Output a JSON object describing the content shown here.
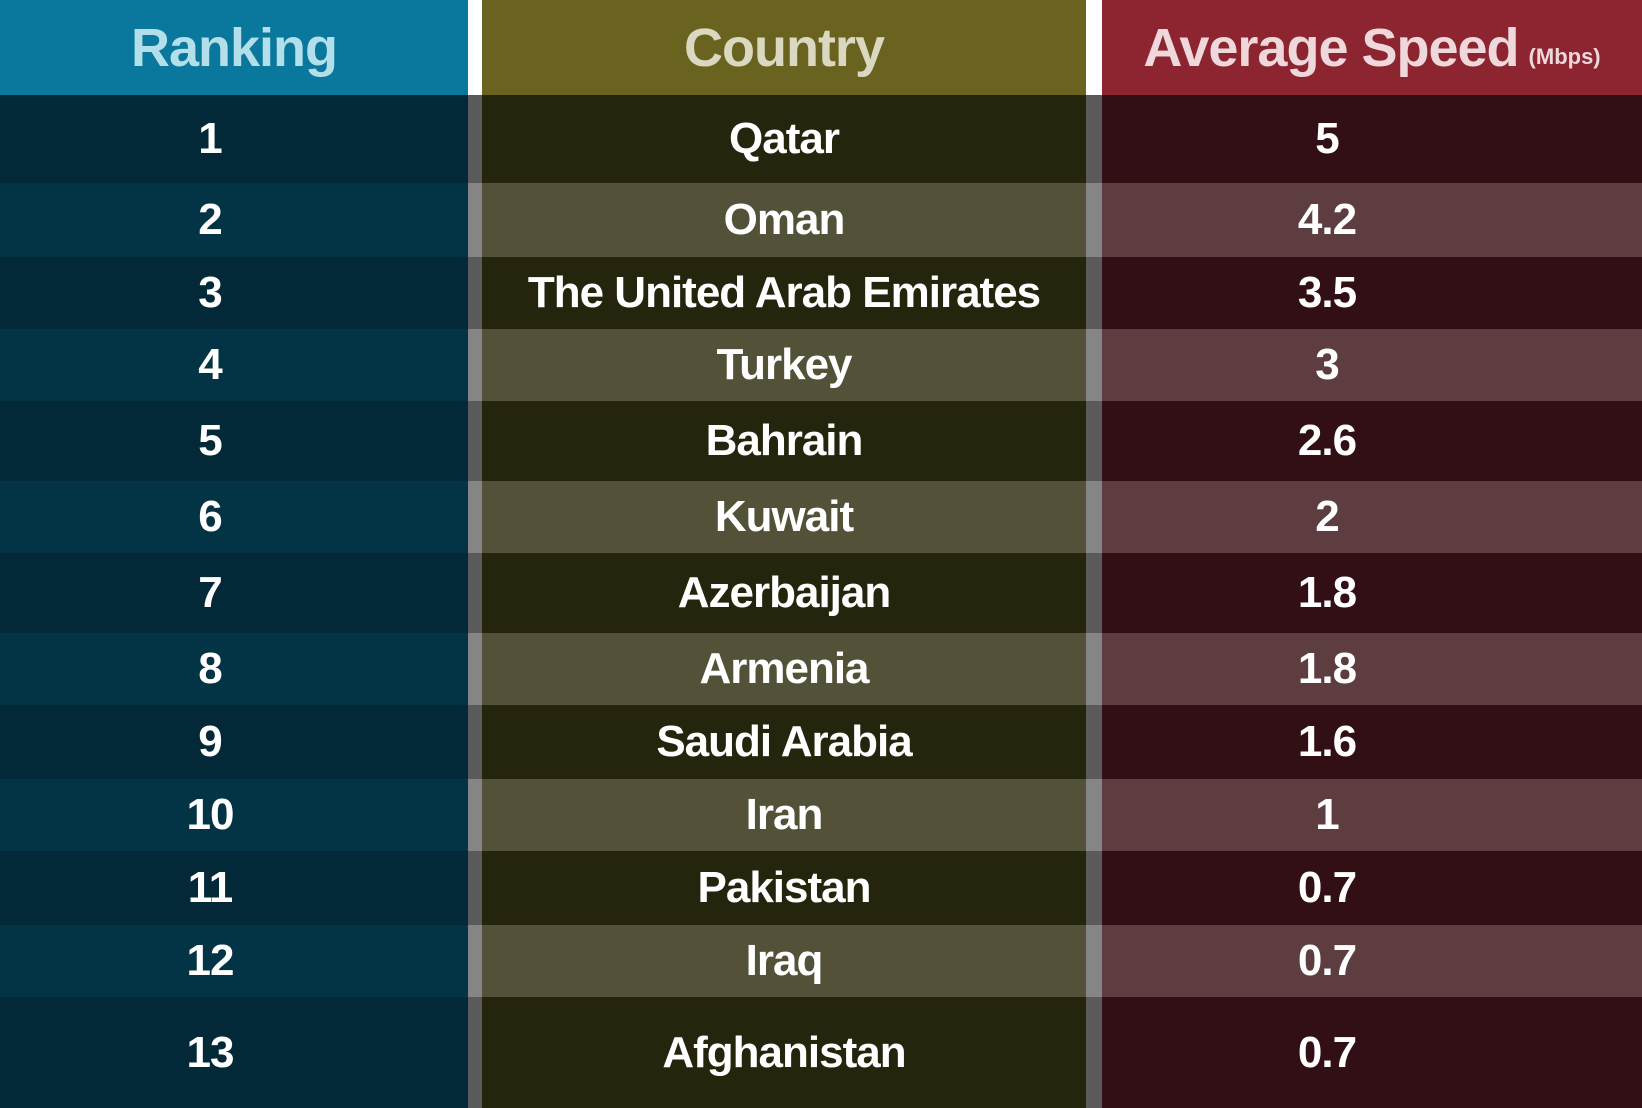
{
  "chart_data": {
    "type": "table",
    "columns": {
      "ranking": "Ranking",
      "country": "Country",
      "speed": "Average Speed",
      "speed_unit": "(Mbps)"
    },
    "rows": [
      {
        "rank": "1",
        "country": "Qatar",
        "speed": "5"
      },
      {
        "rank": "2",
        "country": "Oman",
        "speed": "4.2"
      },
      {
        "rank": "3",
        "country": "The United Arab Emirates",
        "speed": "3.5"
      },
      {
        "rank": "4",
        "country": "Turkey",
        "speed": "3"
      },
      {
        "rank": "5",
        "country": "Bahrain",
        "speed": "2.6"
      },
      {
        "rank": "6",
        "country": "Kuwait",
        "speed": "2"
      },
      {
        "rank": "7",
        "country": "Azerbaijan",
        "speed": "1.8"
      },
      {
        "rank": "8",
        "country": "Armenia",
        "speed": "1.8"
      },
      {
        "rank": "9",
        "country": "Saudi Arabia",
        "speed": "1.6"
      },
      {
        "rank": "10",
        "country": "Iran",
        "speed": "1"
      },
      {
        "rank": "11",
        "country": "Pakistan",
        "speed": "0.7"
      },
      {
        "rank": "12",
        "country": "Iraq",
        "speed": "0.7"
      },
      {
        "rank": "13",
        "country": "Afghanistan",
        "speed": "0.7"
      }
    ],
    "colors": {
      "ranking_header": "#0a779c",
      "country_header": "#6a631f",
      "speed_header": "#8d2530"
    }
  }
}
